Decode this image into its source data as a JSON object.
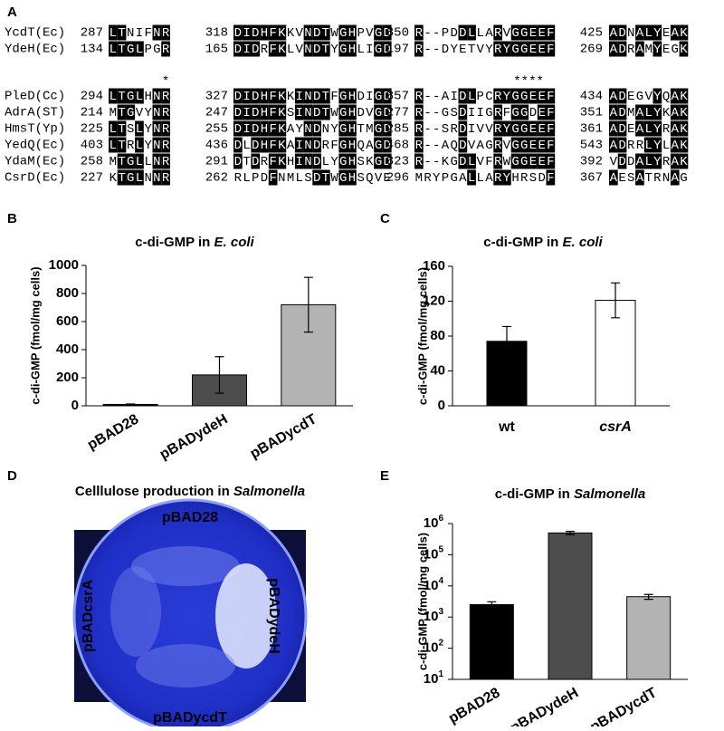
{
  "panel_labels": [
    "A",
    "B",
    "C",
    "D",
    "E"
  ],
  "alignment": {
    "rows": [
      {
        "name": "YcdT(Ec)",
        "blocks": [
          {
            "start": 287,
            "seq": "LTNIFNR"
          },
          {
            "start": 318,
            "seq": "DIDHFKKVNDTWGHPVGD"
          },
          {
            "start": 350,
            "seq": "R--PDDLLARVGGEEF"
          },
          {
            "start": 425,
            "seq": "ADNALYEAK"
          }
        ]
      },
      {
        "name": "YdeH(Ec)",
        "blocks": [
          {
            "start": 134,
            "seq": "LTGLPGR"
          },
          {
            "start": 165,
            "seq": "DIDRFKLVNDTYGHLIGD"
          },
          {
            "start": 197,
            "seq": "R--DYETVYRYGGEEF"
          },
          {
            "start": 269,
            "seq": "ADRAMYEGK"
          }
        ]
      },
      {
        "name": "PleD(Cc)",
        "blocks": [
          {
            "start": 294,
            "seq": "LTGLHNR"
          },
          {
            "start": 327,
            "seq": "DIDHFKKINDTFGHDIGD"
          },
          {
            "start": 357,
            "seq": "R--AIDLPCRYGGEEF"
          },
          {
            "start": 434,
            "seq": "ADEGVYQAK"
          }
        ]
      },
      {
        "name": "AdrA(ST)",
        "blocks": [
          {
            "start": 214,
            "seq": "MTGVYNR"
          },
          {
            "start": 247,
            "seq": "DIDHFKSINDTWGHDVGD"
          },
          {
            "start": 277,
            "seq": "R--GSDIIGRFGGDEF"
          },
          {
            "start": 351,
            "seq": "ADMALYKAK"
          }
        ]
      },
      {
        "name": "HmsT(Yp)",
        "blocks": [
          {
            "start": 225,
            "seq": "LTSLYNR"
          },
          {
            "start": 255,
            "seq": "DIDHFKAYNDNYGHTMGD"
          },
          {
            "start": 285,
            "seq": "R--SRDIVVRYGGEEF"
          },
          {
            "start": 361,
            "seq": "ADEALYRAK"
          }
        ]
      },
      {
        "name": "YedQ(Ec)",
        "blocks": [
          {
            "start": 403,
            "seq": "LTRLYNR"
          },
          {
            "start": 436,
            "seq": "DLDHFKAINDRFGHQAGD"
          },
          {
            "start": 468,
            "seq": "R--AQDVAGRVGGEEF"
          },
          {
            "start": 543,
            "seq": "ADRRLYLAK"
          }
        ]
      },
      {
        "name": "YdaM(Ec)",
        "blocks": [
          {
            "start": 258,
            "seq": "MTGLLNR"
          },
          {
            "start": 291,
            "seq": "DTDRFKHINDLYGHSKGD"
          },
          {
            "start": 323,
            "seq": "R--KGDLVFRWGGEEF"
          },
          {
            "start": 392,
            "seq": "VDDALYRAK"
          }
        ]
      },
      {
        "name": "CsrD(Ec)",
        "blocks": [
          {
            "start": 227,
            "seq": "KTGLNNR"
          },
          {
            "start": 262,
            "seq": "RLPDFNMLSDTWGHSQVE"
          },
          {
            "start": 296,
            "seq": "MRYPGALLARYHRSDF"
          },
          {
            "start": 367,
            "seq": "AESATRNAG"
          }
        ]
      }
    ],
    "annotations": [
      "*",
      "****"
    ]
  },
  "chart_data": [
    {
      "type": "bar",
      "title": [
        {
          "text": "c-di-GMP in "
        },
        {
          "text": "E. coli",
          "italic": true
        }
      ],
      "ylabel": "c-di-GMP (fmol/mg cells)",
      "categories": [
        "pBAD28",
        "pBADydeH",
        "pBADycdT"
      ],
      "values": [
        10,
        220,
        720
      ],
      "errors": [
        3,
        130,
        195
      ],
      "colors": [
        "#000000",
        "#4d4d4d",
        "#b3b3b3"
      ],
      "ylim": [
        0,
        1000
      ],
      "yticks": [
        0,
        200,
        400,
        600,
        800,
        1000
      ],
      "rotate_labels": true
    },
    {
      "type": "bar",
      "title": [
        {
          "text": "c-di-GMP in "
        },
        {
          "text": "E. coli",
          "italic": true
        }
      ],
      "ylabel": "c-di-GMP (fmol/mg cells)",
      "categories": [
        "wt",
        "csrA"
      ],
      "italic_categories": [
        false,
        true
      ],
      "values": [
        74,
        121
      ],
      "errors": [
        17,
        20
      ],
      "colors": [
        "#000000",
        "#ffffff"
      ],
      "ylim": [
        0,
        160
      ],
      "yticks": [
        0,
        40,
        80,
        120,
        160
      ],
      "rotate_labels": false
    },
    {
      "type": "bar",
      "title": [
        {
          "text": "c-di-GMP in "
        },
        {
          "text": "Salmonella",
          "italic": true
        }
      ],
      "ylabel": "c-di-GMP (fmol/mg cells)",
      "log_scale": true,
      "categories": [
        "pBAD28",
        "pBADydeH",
        "pBADycdT"
      ],
      "values": [
        2500,
        500000,
        4500
      ],
      "errors": [
        600,
        60000,
        800
      ],
      "colors": [
        "#000000",
        "#4d4d4d",
        "#b3b3b3"
      ],
      "ylim": [
        10,
        1000000
      ],
      "yticks": [
        {
          "value": 10,
          "label": "10",
          "exponent": "1"
        },
        {
          "value": 100,
          "label": "10",
          "exponent": "2"
        },
        {
          "value": 1000,
          "label": "10",
          "exponent": "3"
        },
        {
          "value": 10000,
          "label": "10",
          "exponent": "4"
        },
        {
          "value": 100000,
          "label": "10",
          "exponent": "5"
        },
        {
          "value": 1000000,
          "label": "10",
          "exponent": "6"
        }
      ],
      "rotate_labels": true
    }
  ],
  "plate": {
    "title": [
      {
        "text": "Celllulose production in "
      },
      {
        "text": "Salmonella",
        "italic": true
      }
    ],
    "top": "pBAD28",
    "left": "pBADcsrA",
    "right": "pBADydeH",
    "bottom": "pBADycdT"
  }
}
